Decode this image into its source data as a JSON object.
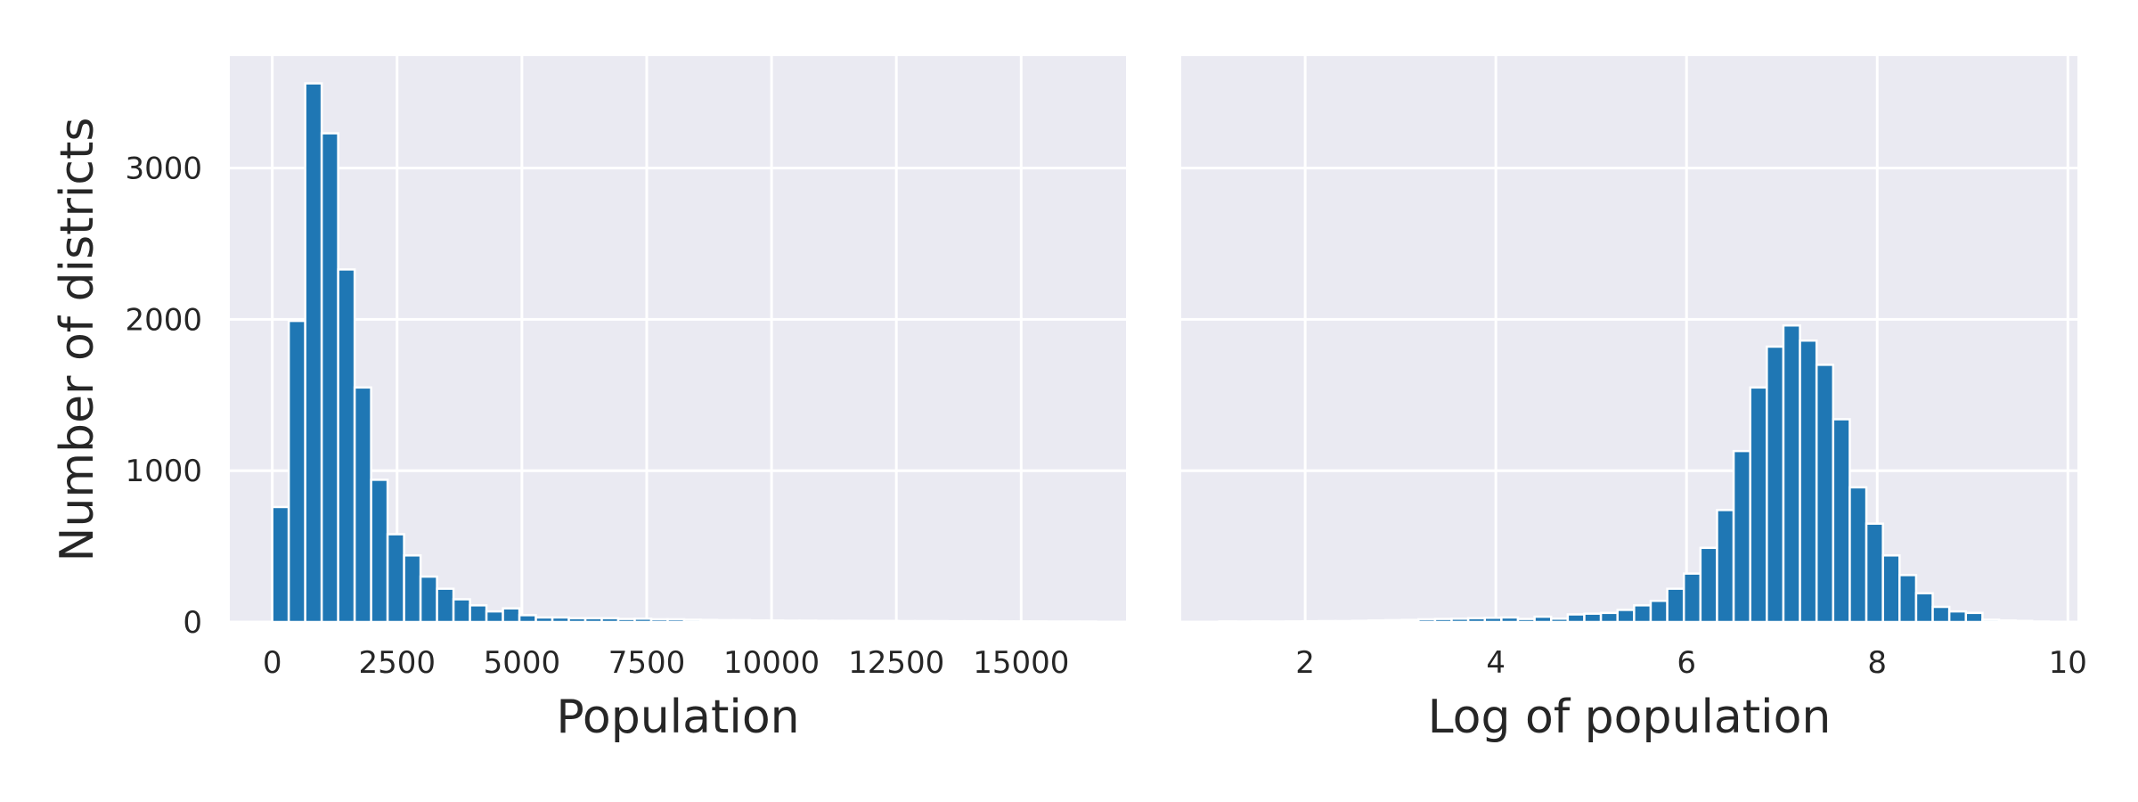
{
  "chart_data": [
    {
      "type": "bar",
      "title": "",
      "xlabel": "Population",
      "ylabel": "Number of districts",
      "xlim": [
        -850,
        17100
      ],
      "ylim": [
        0,
        3740
      ],
      "xticks": [
        0,
        2500,
        5000,
        7500,
        10000,
        12500,
        15000
      ],
      "xtick_labels": [
        "0",
        "2500",
        "5000",
        "7500",
        "10000",
        "12500",
        "15000"
      ],
      "yticks": [
        0,
        1000,
        2000,
        3000
      ],
      "ytick_labels": [
        "0",
        "1000",
        "2000",
        "3000"
      ],
      "grid": true,
      "bins": {
        "start": 0,
        "width": 330,
        "counts": [
          760,
          1990,
          3560,
          3230,
          2330,
          1550,
          940,
          580,
          440,
          300,
          220,
          150,
          110,
          70,
          90,
          45,
          30,
          30,
          25,
          25,
          25,
          20,
          22,
          18,
          18,
          15,
          14,
          12,
          12,
          10,
          10,
          9,
          9,
          8,
          8,
          8,
          7,
          7,
          6,
          6,
          6,
          5,
          5,
          5,
          4,
          4,
          4,
          3,
          3,
          3
        ]
      },
      "bar_color": "#1F77B4"
    },
    {
      "type": "bar",
      "title": "",
      "xlabel": "Log of population",
      "ylabel": "",
      "xlim": [
        0.7,
        10.1
      ],
      "ylim": [
        0,
        3740
      ],
      "xticks": [
        2,
        4,
        6,
        8,
        10
      ],
      "xtick_labels": [
        "2",
        "4",
        "6",
        "8",
        "10"
      ],
      "yticks": [
        0,
        1000,
        2000,
        3000
      ],
      "shared_y_axis": true,
      "grid": true,
      "bins": {
        "start": 1.1,
        "width": 0.174,
        "counts": [
          4,
          3,
          4,
          3,
          4,
          5,
          6,
          6,
          8,
          10,
          12,
          14,
          18,
          20,
          22,
          25,
          28,
          30,
          20,
          35,
          22,
          50,
          55,
          60,
          80,
          110,
          140,
          220,
          320,
          490,
          740,
          1130,
          1550,
          1820,
          1960,
          1860,
          1700,
          1340,
          890,
          650,
          440,
          310,
          190,
          100,
          70,
          60,
          15,
          10,
          7,
          3
        ]
      },
      "bar_color": "#1F77B4"
    }
  ]
}
